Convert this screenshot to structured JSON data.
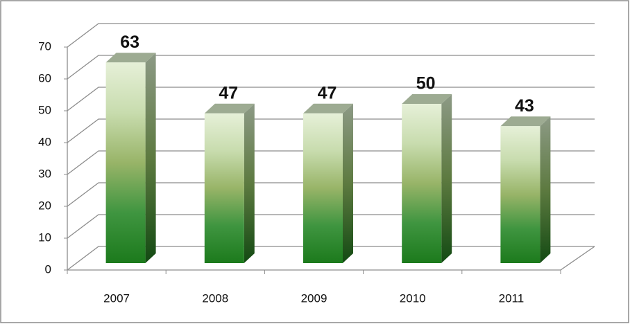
{
  "chart_data": {
    "type": "bar3d",
    "categories": [
      "2007",
      "2008",
      "2009",
      "2010",
      "2011"
    ],
    "values": [
      63,
      47,
      47,
      50,
      43
    ],
    "ylim": [
      0,
      70
    ],
    "yticks": [
      0,
      10,
      20,
      30,
      40,
      50,
      60,
      70
    ],
    "grid": true
  }
}
